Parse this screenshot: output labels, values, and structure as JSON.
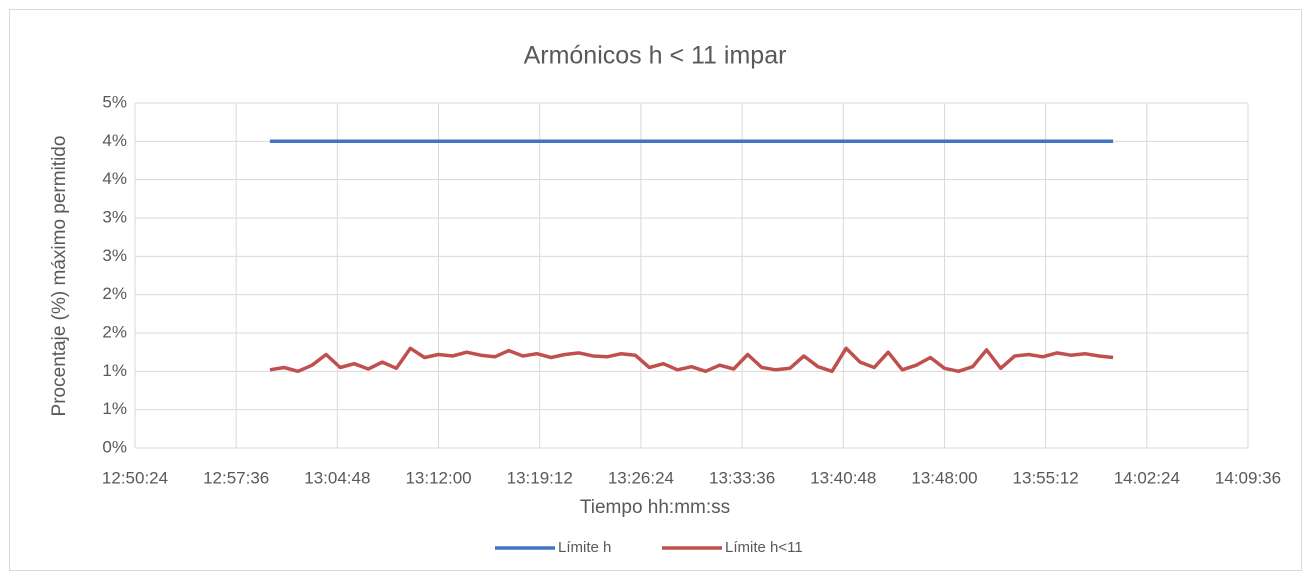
{
  "chart_data": {
    "type": "line",
    "title": "Armónicos h < 11 impar",
    "x_label": "Tiempo hh:mm:ss",
    "y_label": "Procentaje (%) máximo permitido",
    "xlim": [
      46224,
      50976
    ],
    "xticks": [
      {
        "value": 46224,
        "label": "12:50:24"
      },
      {
        "value": 46656,
        "label": "12:57:36"
      },
      {
        "value": 47088,
        "label": "13:04:48"
      },
      {
        "value": 47520,
        "label": "13:12:00"
      },
      {
        "value": 47952,
        "label": "13:19:12"
      },
      {
        "value": 48384,
        "label": "13:26:24"
      },
      {
        "value": 48816,
        "label": "13:33:36"
      },
      {
        "value": 49248,
        "label": "13:40:48"
      },
      {
        "value": 49680,
        "label": "13:48:00"
      },
      {
        "value": 50112,
        "label": "13:55:12"
      },
      {
        "value": 50544,
        "label": "14:02:24"
      },
      {
        "value": 50976,
        "label": "14:09:36"
      }
    ],
    "ylim": [
      0,
      4.5
    ],
    "yticks": [
      {
        "value": 0,
        "label": "0%"
      },
      {
        "value": 0.5,
        "label": "1%"
      },
      {
        "value": 1,
        "label": "1%"
      },
      {
        "value": 1.5,
        "label": "2%"
      },
      {
        "value": 2,
        "label": "2%"
      },
      {
        "value": 2.5,
        "label": "3%"
      },
      {
        "value": 3,
        "label": "3%"
      },
      {
        "value": 3.5,
        "label": "4%"
      },
      {
        "value": 4,
        "label": "4%"
      },
      {
        "value": 4.5,
        "label": "5%"
      }
    ],
    "grid": true,
    "legend": "bottom",
    "series": [
      {
        "name": "Límite h",
        "color": "#4472c4",
        "x": [
          46800,
          50400
        ],
        "values": [
          4,
          4
        ]
      },
      {
        "name": "Límite h<11",
        "color": "#c0504d",
        "x": [
          46800,
          46860,
          46920,
          46980,
          47040,
          47100,
          47160,
          47220,
          47280,
          47340,
          47400,
          47460,
          47520,
          47580,
          47640,
          47700,
          47760,
          47820,
          47880,
          47940,
          48000,
          48060,
          48120,
          48180,
          48240,
          48300,
          48360,
          48420,
          48480,
          48540,
          48600,
          48660,
          48720,
          48780,
          48840,
          48900,
          48960,
          49020,
          49080,
          49140,
          49200,
          49260,
          49320,
          49380,
          49440,
          49500,
          49560,
          49620,
          49680,
          49740,
          49800,
          49860,
          49920,
          49980,
          50040,
          50100,
          50160,
          50220,
          50280,
          50340,
          50400
        ],
        "values": [
          1.02,
          1.05,
          1.0,
          1.08,
          1.22,
          1.05,
          1.1,
          1.03,
          1.12,
          1.04,
          1.3,
          1.18,
          1.22,
          1.2,
          1.25,
          1.21,
          1.19,
          1.27,
          1.2,
          1.23,
          1.18,
          1.22,
          1.24,
          1.2,
          1.19,
          1.23,
          1.21,
          1.05,
          1.1,
          1.02,
          1.06,
          1.0,
          1.08,
          1.03,
          1.22,
          1.05,
          1.02,
          1.04,
          1.2,
          1.06,
          1.0,
          1.3,
          1.12,
          1.05,
          1.25,
          1.02,
          1.08,
          1.18,
          1.04,
          1.0,
          1.06,
          1.28,
          1.04,
          1.2,
          1.22,
          1.19,
          1.24,
          1.21,
          1.23,
          1.2,
          1.18
        ]
      }
    ]
  }
}
